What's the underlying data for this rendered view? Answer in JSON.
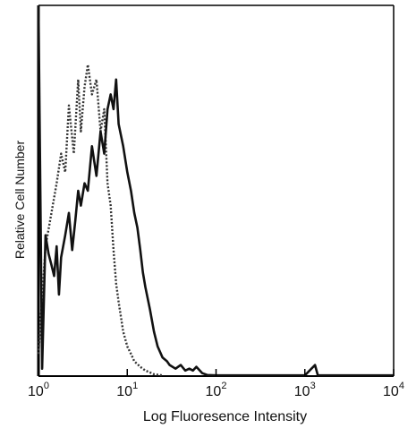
{
  "chart_data": {
    "type": "line",
    "title": "",
    "xlabel": "Log Fluoresence Intensity",
    "ylabel": "Relative Cell Number",
    "x_scale": "log",
    "xlim": [
      1,
      10000
    ],
    "ylim": [
      0,
      100
    ],
    "grid": false,
    "legend": "none",
    "x_ticks": [
      {
        "base": "10",
        "exp": "0",
        "value": 1
      },
      {
        "base": "10",
        "exp": "1",
        "value": 10
      },
      {
        "base": "10",
        "exp": "2",
        "value": 100
      },
      {
        "base": "10",
        "exp": "3",
        "value": 1000
      },
      {
        "base": "10",
        "exp": "4",
        "value": 10000
      }
    ],
    "series": [
      {
        "style": "dotted",
        "color": "#333333",
        "x": [
          1.0,
          1.2,
          1.4,
          1.6,
          1.8,
          2.0,
          2.2,
          2.5,
          2.8,
          3.0,
          3.3,
          3.6,
          4.0,
          4.5,
          5.0,
          5.5,
          6.0,
          6.5,
          7.0,
          7.5,
          8.0,
          9.0,
          10,
          11,
          12,
          14,
          16,
          18,
          20,
          25
        ],
        "values": [
          6,
          35,
          44,
          52,
          60,
          55,
          73,
          60,
          80,
          66,
          78,
          84,
          76,
          80,
          66,
          72,
          52,
          46,
          34,
          25,
          20,
          12,
          8,
          6,
          4,
          2.5,
          1.5,
          1,
          0.5,
          0.2
        ]
      },
      {
        "style": "solid",
        "color": "#111111",
        "x": [
          1.0,
          1.1,
          1.2,
          1.3,
          1.4,
          1.5,
          1.6,
          1.7,
          1.8,
          2.0,
          2.2,
          2.4,
          2.6,
          2.8,
          3.0,
          3.3,
          3.6,
          4.0,
          4.5,
          5.0,
          5.5,
          6.0,
          6.5,
          7.0,
          7.5,
          8.0,
          9.0,
          10,
          11,
          12,
          13,
          14,
          15,
          16,
          18,
          20,
          22,
          25,
          28,
          30,
          35,
          40,
          45,
          50,
          55,
          60,
          70,
          80,
          100,
          200,
          500,
          1000,
          1300,
          1400,
          2000,
          5000,
          10000
        ],
        "values": [
          100,
          2,
          38,
          33,
          30,
          27,
          35,
          22,
          32,
          38,
          44,
          34,
          42,
          50,
          46,
          52,
          50,
          62,
          54,
          66,
          60,
          72,
          76,
          72,
          80,
          68,
          62,
          55,
          50,
          44,
          40,
          34,
          28,
          24,
          18,
          12,
          8,
          5,
          4,
          3,
          2,
          3,
          1.5,
          2,
          1.5,
          2.5,
          0.8,
          0.3,
          0.2,
          0.2,
          0.2,
          0.2,
          3,
          0.2,
          0.2,
          0.2,
          0.2
        ]
      }
    ]
  }
}
